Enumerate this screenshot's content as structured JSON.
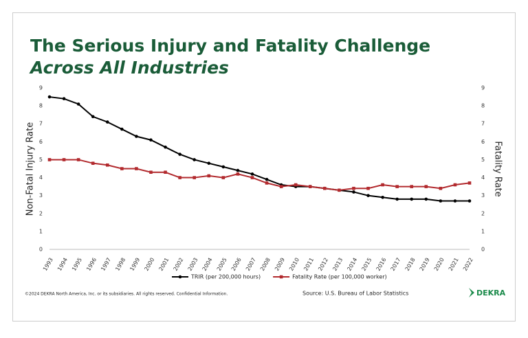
{
  "chart_data": {
    "type": "line",
    "title": "The Serious Injury and Fatality Challenge",
    "subtitle": "Across All Industries",
    "ylabel": "Non-Fatal Injury Rate",
    "y2label": "Fatality Rate",
    "categories": [
      "1993",
      "1994",
      "1995",
      "1996",
      "1997",
      "1998",
      "1999",
      "2000",
      "2001",
      "2002",
      "2003",
      "2004",
      "2005",
      "2006",
      "2007",
      "2008",
      "2009",
      "2010",
      "2011",
      "2012",
      "2013",
      "2014",
      "2015",
      "2016",
      "2017",
      "2018",
      "2019",
      "2020",
      "2021",
      "2022"
    ],
    "series": [
      {
        "name": "TRIR (per 200,000 hours)",
        "color": "#000000",
        "axis": "y",
        "values": [
          8.5,
          8.4,
          8.1,
          7.4,
          7.1,
          6.7,
          6.3,
          6.1,
          5.7,
          5.3,
          5.0,
          4.8,
          4.6,
          4.4,
          4.2,
          3.9,
          3.6,
          3.5,
          3.5,
          3.4,
          3.3,
          3.2,
          3.0,
          2.9,
          2.8,
          2.8,
          2.8,
          2.7,
          2.7,
          2.7
        ]
      },
      {
        "name": "Fatality Rate (per 100,000 worker)",
        "color": "#b22a2e",
        "axis": "y2",
        "values": [
          5.0,
          5.0,
          5.0,
          4.8,
          4.7,
          4.5,
          4.5,
          4.3,
          4.3,
          4.0,
          4.0,
          4.1,
          4.0,
          4.2,
          4.0,
          3.7,
          3.5,
          3.6,
          3.5,
          3.4,
          3.3,
          3.4,
          3.4,
          3.6,
          3.5,
          3.5,
          3.5,
          3.4,
          3.6,
          3.7
        ]
      }
    ],
    "ylim": [
      0,
      9
    ],
    "yticks": [
      0,
      1,
      2,
      3,
      4,
      5,
      6,
      7,
      8,
      9
    ],
    "y2lim": [
      0,
      9
    ],
    "y2ticks": [
      0,
      1,
      2,
      3,
      4,
      5,
      6,
      7,
      8,
      9
    ]
  },
  "footer": {
    "copyright": "©2024 DEKRA North America, Inc. or its subsidiaries. All rights reserved. Confidential Information.",
    "source": "Source: U.S. Bureau of Labor Statistics",
    "brand": "DEKRA"
  }
}
